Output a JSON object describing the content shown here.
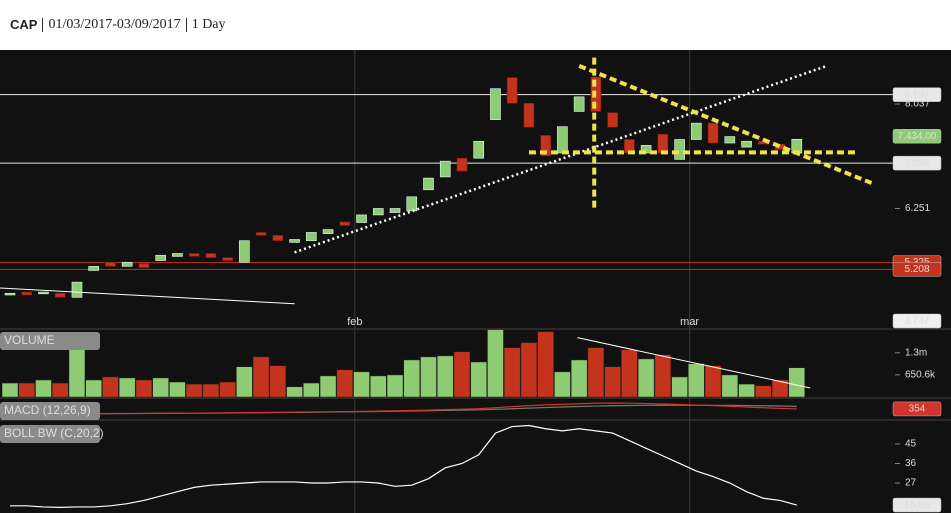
{
  "header": {
    "symbol": "CAP",
    "range": "01/03/2017-03/09/2017",
    "interval": "1 Day"
  },
  "chart_data": [
    {
      "type": "candlestick",
      "open": [
        4.77,
        4.82,
        4.79,
        4.8,
        4.73,
        5.19,
        5.33,
        5.26,
        5.31,
        5.36,
        5.43,
        5.48,
        5.48,
        5.41,
        5.33,
        5.84,
        5.79,
        5.67,
        5.7,
        5.82,
        6.02,
        6.01,
        6.14,
        6.18,
        6.21,
        6.57,
        6.79,
        7.11,
        7.11,
        7.77,
        8.49,
        8.05,
        7.5,
        7.2,
        7.91,
        8.5,
        7.89,
        7.43,
        7.2,
        7.52,
        7.09,
        7.43,
        7.71,
        7.37,
        7.3,
        7.4,
        7.35,
        7.2
      ],
      "close": [
        4.8,
        4.77,
        4.82,
        4.73,
        4.99,
        5.26,
        5.26,
        5.33,
        5.24,
        5.45,
        5.48,
        5.43,
        5.41,
        5.36,
        5.7,
        5.79,
        5.7,
        5.72,
        5.84,
        5.89,
        5.96,
        6.14,
        6.25,
        6.25,
        6.45,
        6.77,
        7.06,
        6.89,
        7.4,
        8.3,
        8.05,
        7.64,
        7.15,
        7.65,
        8.16,
        7.91,
        7.64,
        7.2,
        7.33,
        7.2,
        7.43,
        7.71,
        7.37,
        7.48,
        7.4,
        7.35,
        7.26,
        7.434
      ],
      "up_color": "#8fcb72",
      "down_color": "#c4331b",
      "ylim": [
        4.428,
        8.927
      ],
      "yticks": [
        8.197,
        8.037,
        7.026,
        6.251,
        5.325,
        5.208
      ],
      "hlines": [
        {
          "value": 8.197,
          "color": "#e8e8e8"
        },
        {
          "value": 7.026,
          "color": "#e8e8e8"
        },
        {
          "value": 5.325,
          "color": "#c4331b"
        },
        {
          "value": 5.208,
          "color": "#c4331b"
        }
      ],
      "last_label": "7.434,00",
      "last_color": "#8fcb72",
      "floor_label": 3.737,
      "months": [
        {
          "label": "feb",
          "position": 20.6
        },
        {
          "label": "mar",
          "position": 40.6
        }
      ],
      "trendlines": [
        {
          "color": "#ffffff",
          "style": "dotted",
          "x": [
            17,
            48.8
          ],
          "y": [
            5.5,
            8.69
          ]
        },
        {
          "color": "#ffffff",
          "style": "solid",
          "x": [
            -0.6,
            17
          ],
          "y": [
            4.89,
            4.62
          ]
        },
        {
          "color": "#f2e14c",
          "style": "dashed",
          "x": [
            31,
            50.7
          ],
          "y": [
            7.21,
            7.21
          ]
        },
        {
          "color": "#f2e14c",
          "style": "dashed",
          "x": [
            34,
            51.6
          ],
          "y": [
            8.69,
            6.67
          ]
        },
        {
          "color": "#f2e14c",
          "style": "dashed",
          "x": [
            34.9,
            34.9
          ],
          "y": [
            8.83,
            6.21
          ]
        }
      ]
    },
    {
      "type": "bar",
      "title": "VOLUME",
      "values": [
        410000,
        410000,
        500000,
        410000,
        1450000,
        500000,
        590000,
        560000,
        500000,
        560000,
        440000,
        380000,
        380000,
        440000,
        890000,
        1180000,
        920000,
        300000,
        410000,
        620000,
        800000,
        740000,
        620000,
        650000,
        1090000,
        1180000,
        1210000,
        1330000,
        1030000,
        1980000,
        1450000,
        1600000,
        1920000,
        740000,
        1090000,
        1450000,
        890000,
        1390000,
        1120000,
        1240000,
        590000,
        980000,
        920000,
        650000,
        380000,
        330000,
        500000,
        860000
      ],
      "ylim": [
        0,
        2000000
      ],
      "yticks": [
        {
          "value": 1300000,
          "label": "1.3m"
        },
        {
          "value": 650600,
          "label": "650.6k"
        }
      ],
      "trendlines": [
        {
          "color": "#ffffff",
          "style": "solid",
          "x": [
            33.9,
            47.8
          ],
          "y": [
            1745000,
            266000
          ]
        }
      ]
    },
    {
      "type": "line",
      "title": "MACD (12,26,9)",
      "values": [
        -180,
        -175,
        -170,
        -165,
        -150,
        -140,
        -130,
        -120,
        -110,
        -100,
        -90,
        -80,
        -70,
        -60,
        -40,
        -20,
        0,
        20,
        40,
        60,
        80,
        100,
        130,
        160,
        190,
        230,
        280,
        330,
        380,
        480,
        600,
        700,
        780,
        840,
        900,
        950,
        980,
        960,
        920,
        870,
        820,
        760,
        700,
        630,
        560,
        480,
        410,
        354
      ],
      "signal": [
        -170,
        -170,
        -168,
        -165,
        -160,
        -152,
        -144,
        -136,
        -126,
        -116,
        -106,
        -96,
        -86,
        -76,
        -62,
        -46,
        -30,
        -12,
        6,
        24,
        42,
        62,
        84,
        108,
        134,
        162,
        194,
        228,
        264,
        314,
        374,
        438,
        500,
        556,
        608,
        654,
        693,
        718,
        735,
        743,
        746,
        744,
        737,
        726,
        710,
        689,
        661,
        622
      ],
      "color": "#d0342c",
      "signal_color": "#777777",
      "last_color": "#d0342c",
      "ylim": [
        -600,
        1400
      ]
    },
    {
      "type": "line",
      "title": "BOLL BW (C,20,2)",
      "values": [
        16.5,
        16.5,
        16,
        15.8,
        16,
        16,
        16.5,
        17.5,
        19,
        21,
        23,
        25,
        26,
        26.5,
        27,
        27.5,
        27.5,
        27.5,
        27,
        27,
        27.5,
        27.5,
        27,
        25.5,
        26,
        29,
        34,
        36,
        40,
        50,
        53,
        53.5,
        52,
        51,
        52,
        51,
        50,
        46.5,
        43,
        39.5,
        36,
        32.5,
        30,
        27,
        23,
        20,
        19,
        16.86
      ],
      "color": "#ffffff",
      "last_color": "#e8e8e8",
      "ylim": [
        13.2,
        55.1
      ],
      "yticks": [
        45,
        36,
        27
      ]
    }
  ]
}
